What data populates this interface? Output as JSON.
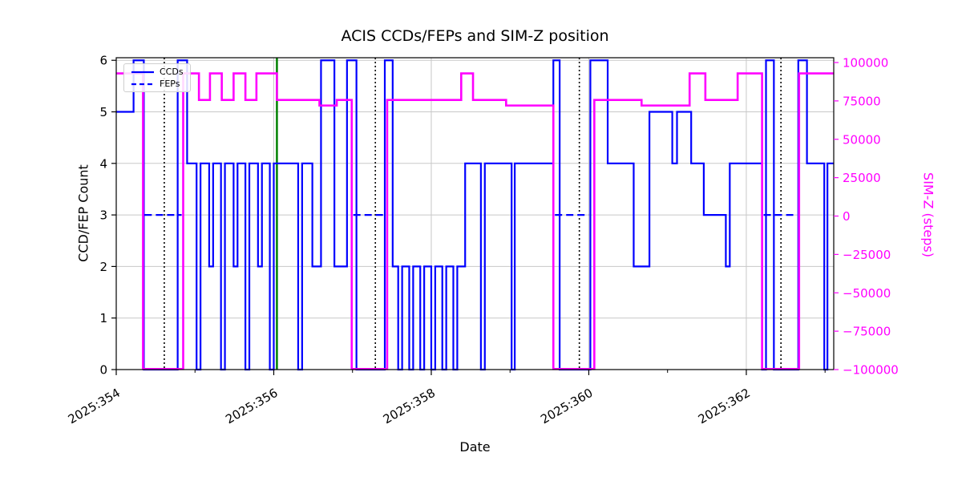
{
  "chart_data": {
    "type": "line",
    "title": "ACIS CCDs/FEPs and SIM-Z position",
    "xlabel": "Date",
    "ylabel_left": "CCD/FEP Count",
    "ylabel_right": "SIM-Z (steps)",
    "x_domain": [
      354.0,
      363.11
    ],
    "x_ticks_major": [
      {
        "value": 354,
        "label": "2025:354"
      },
      {
        "value": 356,
        "label": "2025:356"
      },
      {
        "value": 358,
        "label": "2025:358"
      },
      {
        "value": 360,
        "label": "2025:360"
      },
      {
        "value": 362,
        "label": "2025:362"
      }
    ],
    "x_ticks_minor": [
      355,
      357,
      359,
      361,
      363
    ],
    "y_left": {
      "ticks": [
        0,
        1,
        2,
        3,
        4,
        5,
        6
      ],
      "lim": [
        0,
        6
      ]
    },
    "y_right": {
      "lim": [
        -100000,
        100000
      ],
      "ticks": [
        {
          "value": 100000,
          "label": "100000"
        },
        {
          "value": 75000,
          "label": "75000"
        },
        {
          "value": 50000,
          "label": "50000"
        },
        {
          "value": 25000,
          "label": "25000"
        },
        {
          "value": 0,
          "label": "0"
        },
        {
          "value": -25000,
          "label": "−25000"
        },
        {
          "value": -50000,
          "label": "−50000"
        },
        {
          "value": -75000,
          "label": "−75000"
        },
        {
          "value": -100000,
          "label": "−100000"
        }
      ]
    },
    "legend": [
      {
        "label": "CCDs",
        "style": "solid"
      },
      {
        "label": "FEPs",
        "style": "dashed"
      }
    ],
    "colors": {
      "ccds": "#0000ff",
      "feps": "#0000ff",
      "simz": "#ff00ff",
      "green_vline": "#008000",
      "dotted_vline": "#000000",
      "grid": "#c8c8c8",
      "axes": "#000000"
    },
    "series": {
      "ccds": {
        "name": "CCDs",
        "steps": [
          [
            354.0,
            5
          ],
          [
            354.22,
            6
          ],
          [
            354.35,
            0
          ],
          [
            354.78,
            6
          ],
          [
            354.9,
            4
          ],
          [
            355.02,
            0
          ],
          [
            355.07,
            4
          ],
          [
            355.18,
            2
          ],
          [
            355.23,
            4
          ],
          [
            355.33,
            0
          ],
          [
            355.38,
            4
          ],
          [
            355.49,
            2
          ],
          [
            355.54,
            4
          ],
          [
            355.64,
            0
          ],
          [
            355.69,
            4
          ],
          [
            355.8,
            2
          ],
          [
            355.85,
            4
          ],
          [
            355.95,
            0
          ],
          [
            356.0,
            4
          ],
          [
            356.31,
            0
          ],
          [
            356.36,
            4
          ],
          [
            356.49,
            2
          ],
          [
            356.6,
            6
          ],
          [
            356.77,
            2
          ],
          [
            356.93,
            6
          ],
          [
            357.05,
            0
          ],
          [
            357.41,
            6
          ],
          [
            357.51,
            2
          ],
          [
            357.58,
            0
          ],
          [
            357.63,
            2
          ],
          [
            357.72,
            0
          ],
          [
            357.77,
            2
          ],
          [
            357.86,
            0
          ],
          [
            357.91,
            2
          ],
          [
            358.0,
            0
          ],
          [
            358.05,
            2
          ],
          [
            358.14,
            0
          ],
          [
            358.19,
            2
          ],
          [
            358.28,
            0
          ],
          [
            358.33,
            2
          ],
          [
            358.43,
            4
          ],
          [
            358.63,
            0
          ],
          [
            358.68,
            4
          ],
          [
            359.02,
            0
          ],
          [
            359.06,
            4
          ],
          [
            359.55,
            6
          ],
          [
            359.63,
            0
          ],
          [
            360.02,
            6
          ],
          [
            360.24,
            4
          ],
          [
            360.57,
            2
          ],
          [
            360.77,
            5
          ],
          [
            361.06,
            4
          ],
          [
            361.12,
            5
          ],
          [
            361.3,
            4
          ],
          [
            361.46,
            3
          ],
          [
            361.74,
            2
          ],
          [
            361.79,
            4
          ],
          [
            362.2,
            0
          ],
          [
            362.25,
            6
          ],
          [
            362.35,
            0
          ],
          [
            362.66,
            6
          ],
          [
            362.77,
            4
          ],
          [
            362.99,
            0
          ],
          [
            363.03,
            4
          ]
        ]
      },
      "feps": {
        "name": "FEPs",
        "value": 3,
        "segments": [
          [
            354.36,
            354.83
          ],
          [
            357.01,
            357.4
          ],
          [
            359.57,
            360.0
          ],
          [
            362.22,
            362.64
          ]
        ]
      },
      "simz": {
        "name": "SIM-Z",
        "steps": [
          [
            354.0,
            92904
          ],
          [
            354.34,
            -99616
          ],
          [
            354.85,
            92904
          ],
          [
            355.05,
            75624
          ],
          [
            355.19,
            92904
          ],
          [
            355.34,
            75624
          ],
          [
            355.49,
            92904
          ],
          [
            355.64,
            75624
          ],
          [
            355.78,
            92904
          ],
          [
            356.04,
            75624
          ],
          [
            356.58,
            72000
          ],
          [
            356.8,
            75624
          ],
          [
            356.99,
            -99616
          ],
          [
            357.44,
            75624
          ],
          [
            358.38,
            92904
          ],
          [
            358.53,
            75624
          ],
          [
            358.95,
            72000
          ],
          [
            359.55,
            -99616
          ],
          [
            360.07,
            75624
          ],
          [
            360.67,
            72000
          ],
          [
            361.28,
            92904
          ],
          [
            361.48,
            75624
          ],
          [
            361.89,
            92904
          ],
          [
            362.2,
            -99616
          ],
          [
            362.67,
            92904
          ]
        ]
      }
    },
    "vlines": {
      "green": [
        356.04
      ],
      "dotted": [
        354.61,
        357.29,
        359.88,
        362.44
      ]
    }
  }
}
